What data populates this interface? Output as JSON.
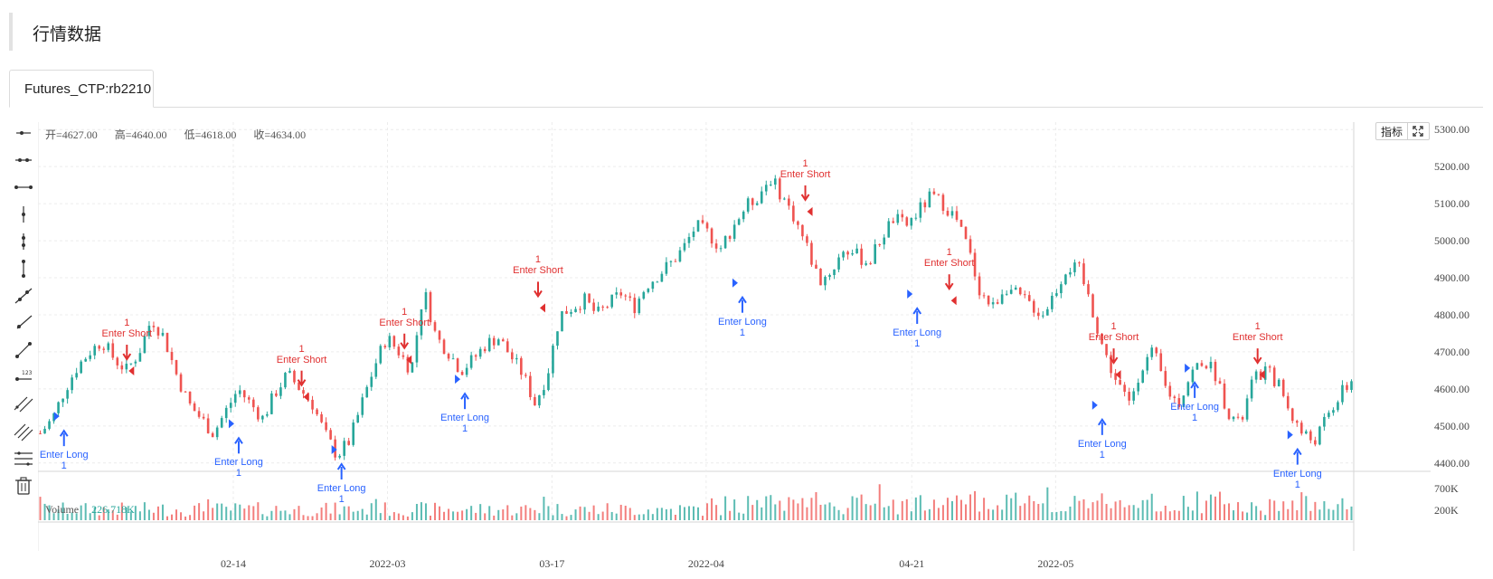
{
  "page": {
    "title": "行情数据"
  },
  "tabs": [
    {
      "label": "Futures_CTP:rb2210",
      "active": true
    }
  ],
  "legend": {
    "open": "开=4627.00",
    "high": "高=4640.00",
    "low": "低=4618.00",
    "close": "收=4634.00"
  },
  "volume_legend": {
    "label": "Volume",
    "value": "226.718K"
  },
  "toolbar_buttons": {
    "indicators": "指标"
  },
  "tool_icons": [
    "horizontal-ray-icon",
    "horizontal-line-icon",
    "horizontal-segment-icon",
    "vertical-line-icon",
    "vertical-segment-icon",
    "vertical-ray-icon",
    "trend-line-icon",
    "ray-line-icon",
    "segment-line-icon",
    "price-label-icon",
    "parallel-channel-icon",
    "multi-parallel-icon",
    "fib-levels-icon",
    "trash-icon"
  ],
  "colors": {
    "up": "#26a69a",
    "down": "#ef5350",
    "long": "#2962ff",
    "short": "#e03030"
  },
  "chart_data": {
    "type": "candlestick",
    "y_ticks": [
      "5300.00",
      "5200.00",
      "5100.00",
      "5000.00",
      "4900.00",
      "4800.00",
      "4700.00",
      "4600.00",
      "4500.00",
      "4400.00"
    ],
    "ylim": [
      4380,
      5320
    ],
    "volume_ticks": [
      "700K",
      "200K"
    ],
    "x_ticks": [
      "02-14",
      "2022-03",
      "03-17",
      "2022-04",
      "04-21",
      "2022-05"
    ],
    "signals": [
      {
        "type": "long",
        "date": "2022-01-28",
        "price": 4470,
        "label": "Enter Long",
        "qty": "1"
      },
      {
        "type": "short",
        "date": "2022-02-04",
        "price": 4690,
        "label": "Enter Short",
        "qty": "1"
      },
      {
        "type": "long",
        "date": "2022-02-14",
        "price": 4450,
        "label": "Enter Long",
        "qty": "1"
      },
      {
        "type": "short",
        "date": "2022-02-21",
        "price": 4620,
        "label": "Enter Short",
        "qty": "1"
      },
      {
        "type": "long",
        "date": "2022-02-24",
        "price": 4380,
        "label": "Enter Long",
        "qty": "1"
      },
      {
        "type": "short",
        "date": "2022-03-03",
        "price": 4720,
        "label": "Enter Short",
        "qty": "1"
      },
      {
        "type": "long",
        "date": "2022-03-08",
        "price": 4570,
        "label": "Enter Long",
        "qty": "1"
      },
      {
        "type": "short",
        "date": "2022-03-16",
        "price": 4860,
        "label": "Enter Short",
        "qty": "1"
      },
      {
        "type": "long",
        "date": "2022-04-04",
        "price": 4830,
        "label": "Enter Long",
        "qty": "1"
      },
      {
        "type": "short",
        "date": "2022-04-11",
        "price": 5120,
        "label": "Enter Short",
        "qty": "1"
      },
      {
        "type": "long",
        "date": "2022-04-21",
        "price": 4800,
        "label": "Enter Long",
        "qty": "1"
      },
      {
        "type": "short",
        "date": "2022-04-25",
        "price": 4880,
        "label": "Enter Short",
        "qty": "1"
      },
      {
        "type": "long",
        "date": "2022-05-09",
        "price": 4500,
        "label": "Enter Long",
        "qty": "1"
      },
      {
        "type": "short",
        "date": "2022-05-11",
        "price": 4680,
        "label": "Enter Short",
        "qty": "1"
      },
      {
        "type": "long",
        "date": "2022-05-18",
        "price": 4600,
        "label": "Enter Long",
        "qty": "1"
      },
      {
        "type": "short",
        "date": "2022-05-25",
        "price": 4680,
        "label": "Enter Short",
        "qty": "1"
      },
      {
        "type": "long",
        "date": "2022-05-28",
        "price": 4420,
        "label": "Enter Long",
        "qty": "1"
      }
    ],
    "close_path": [
      4480,
      4520,
      4600,
      4660,
      4700,
      4730,
      4680,
      4650,
      4700,
      4790,
      4740,
      4640,
      4560,
      4520,
      4480,
      4540,
      4600,
      4560,
      4520,
      4590,
      4640,
      4600,
      4560,
      4480,
      4420,
      4460,
      4560,
      4660,
      4740,
      4700,
      4650,
      4870,
      4740,
      4700,
      4650,
      4680,
      4720,
      4740,
      4690,
      4640,
      4560,
      4640,
      4800,
      4820,
      4840,
      4800,
      4830,
      4860,
      4820,
      4880,
      4910,
      4940,
      4980,
      5040,
      5020,
      4980,
      5040,
      5090,
      5120,
      5170,
      5120,
      5060,
      4980,
      4890,
      4920,
      4980,
      4960,
      4940,
      5010,
      5060,
      5040,
      5080,
      5120,
      5100,
      5060,
      4980,
      4860,
      4820,
      4880,
      4850,
      4830,
      4800,
      4860,
      4930,
      4920,
      4820,
      4700,
      4620,
      4560,
      4660,
      4700,
      4600,
      4560,
      4640,
      4680,
      4640,
      4540,
      4500,
      4620,
      4650,
      4620,
      4540,
      4480,
      4460,
      4520,
      4580,
      4620
    ]
  }
}
